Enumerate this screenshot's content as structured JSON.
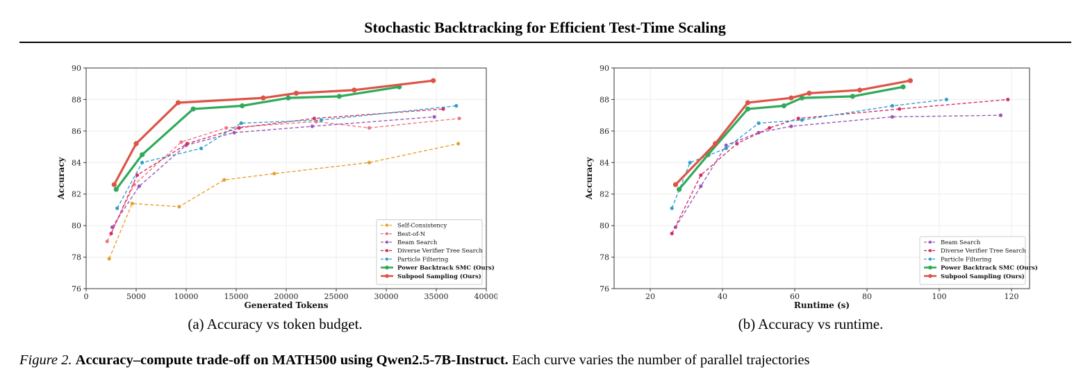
{
  "header": {
    "title": "Stochastic Backtracking for Efficient Test-Time Scaling"
  },
  "captions": {
    "a": "(a) Accuracy vs token budget.",
    "b": "(b) Accuracy vs runtime."
  },
  "figure_caption": {
    "label": "Figure 2.",
    "title": "Accuracy–compute trade-off on MATH500 using Qwen2.5-7B-Instruct.",
    "text": "Each curve varies the number of parallel trajectories"
  },
  "colors": {
    "Self-Consistency": "#e5a12e",
    "Best-of-N": "#ee7783",
    "Beam Search": "#9a58b8",
    "Diverse Verifier Tree Search": "#d62e63",
    "Particle Filtering": "#2e9fcc",
    "Power Backtrack SMC (Ours)": "#2eaa5a",
    "Subpool Sampling (Ours)": "#dc5446"
  },
  "chart_data": [
    {
      "type": "line",
      "xlabel": "Generated Tokens",
      "ylabel": "Accuracy",
      "xlim": [
        0,
        40000
      ],
      "ylim": [
        76,
        90
      ],
      "xticks": [
        0,
        5000,
        10000,
        15000,
        20000,
        25000,
        30000,
        35000,
        40000
      ],
      "yticks": [
        76,
        78,
        80,
        82,
        84,
        86,
        88,
        90
      ],
      "grid": true,
      "legend_position": "lower-right",
      "series": [
        {
          "name": "Self-Consistency",
          "style": "dashed",
          "bold": false,
          "x": [
            2300,
            4600,
            9300,
            13800,
            18800,
            28300,
            37200
          ],
          "y": [
            77.9,
            81.4,
            81.2,
            82.9,
            83.3,
            84.0,
            85.2
          ]
        },
        {
          "name": "Best-of-N",
          "style": "dashed",
          "bold": false,
          "x": [
            2100,
            4800,
            9500,
            14000,
            23000,
            28300,
            37300
          ],
          "y": [
            79.0,
            82.6,
            85.3,
            86.2,
            86.6,
            86.2,
            86.8
          ]
        },
        {
          "name": "Beam Search",
          "style": "dashed",
          "bold": false,
          "x": [
            2600,
            5300,
            10000,
            14800,
            22600,
            34800
          ],
          "y": [
            79.9,
            82.5,
            85.1,
            85.9,
            86.3,
            86.9
          ]
        },
        {
          "name": "Diverse Verifier Tree Search",
          "style": "dashed",
          "bold": false,
          "x": [
            2500,
            5100,
            10100,
            15300,
            22800,
            35700
          ],
          "y": [
            79.5,
            83.2,
            85.2,
            86.2,
            86.8,
            87.4
          ]
        },
        {
          "name": "Particle Filtering",
          "style": "dashed",
          "bold": false,
          "x": [
            3100,
            5600,
            11500,
            15500,
            23500,
            37000
          ],
          "y": [
            81.1,
            84.0,
            84.9,
            86.5,
            86.7,
            87.6
          ]
        },
        {
          "name": "Power Backtrack SMC (Ours)",
          "style": "solid",
          "bold": true,
          "x": [
            3000,
            5600,
            10700,
            15600,
            20200,
            25300,
            31300
          ],
          "y": [
            82.3,
            84.5,
            87.4,
            87.6,
            88.1,
            88.2,
            88.8
          ]
        },
        {
          "name": "Subpool Sampling (Ours)",
          "style": "solid",
          "bold": true,
          "x": [
            2800,
            5000,
            9200,
            17700,
            21000,
            26800,
            34700
          ],
          "y": [
            82.6,
            85.2,
            87.8,
            88.1,
            88.4,
            88.6,
            89.2
          ]
        }
      ]
    },
    {
      "type": "line",
      "xlabel": "Runtime (s)",
      "ylabel": "Accuracy",
      "xlim": [
        10,
        125
      ],
      "ylim": [
        76,
        90
      ],
      "xticks": [
        20,
        40,
        60,
        80,
        100,
        120
      ],
      "yticks": [
        76,
        78,
        80,
        82,
        84,
        86,
        88,
        90
      ],
      "grid": true,
      "legend_position": "lower-right",
      "series": [
        {
          "name": "Beam Search",
          "style": "dashed",
          "bold": false,
          "x": [
            27,
            34,
            41,
            50,
            59,
            87,
            117
          ],
          "y": [
            79.9,
            82.5,
            85.1,
            85.9,
            86.3,
            86.9,
            87.0
          ]
        },
        {
          "name": "Diverse Verifier Tree Search",
          "style": "dashed",
          "bold": false,
          "x": [
            26,
            34,
            44,
            53,
            61,
            89,
            119
          ],
          "y": [
            79.5,
            83.2,
            85.2,
            86.2,
            86.8,
            87.4,
            88.0
          ]
        },
        {
          "name": "Particle Filtering",
          "style": "dashed",
          "bold": false,
          "x": [
            26,
            31,
            41,
            50,
            62,
            87,
            102
          ],
          "y": [
            81.1,
            84.0,
            84.9,
            86.5,
            86.7,
            87.6,
            88.0
          ]
        },
        {
          "name": "Power Backtrack SMC (Ours)",
          "style": "solid",
          "bold": true,
          "x": [
            28,
            36,
            47,
            57,
            62,
            76,
            90
          ],
          "y": [
            82.3,
            84.5,
            87.4,
            87.6,
            88.1,
            88.2,
            88.8
          ]
        },
        {
          "name": "Subpool Sampling (Ours)",
          "style": "solid",
          "bold": true,
          "x": [
            27,
            38,
            47,
            59,
            64,
            78,
            92
          ],
          "y": [
            82.6,
            85.2,
            87.8,
            88.1,
            88.4,
            88.6,
            89.2
          ]
        }
      ]
    }
  ]
}
